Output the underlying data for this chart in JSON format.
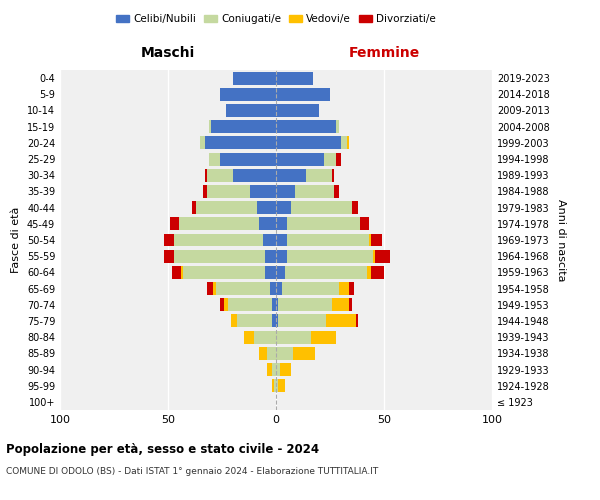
{
  "age_groups": [
    "100+",
    "95-99",
    "90-94",
    "85-89",
    "80-84",
    "75-79",
    "70-74",
    "65-69",
    "60-64",
    "55-59",
    "50-54",
    "45-49",
    "40-44",
    "35-39",
    "30-34",
    "25-29",
    "20-24",
    "15-19",
    "10-14",
    "5-9",
    "0-4"
  ],
  "birth_years": [
    "≤ 1923",
    "1924-1928",
    "1929-1933",
    "1934-1938",
    "1939-1943",
    "1944-1948",
    "1949-1953",
    "1954-1958",
    "1959-1963",
    "1964-1968",
    "1969-1973",
    "1974-1978",
    "1979-1983",
    "1984-1988",
    "1989-1993",
    "1994-1998",
    "1999-2003",
    "2004-2008",
    "2009-2013",
    "2014-2018",
    "2019-2023"
  ],
  "male": {
    "celibi": [
      0,
      0,
      0,
      0,
      0,
      2,
      2,
      3,
      5,
      5,
      6,
      8,
      9,
      12,
      20,
      26,
      33,
      30,
      23,
      26,
      20
    ],
    "coniugati": [
      0,
      1,
      2,
      4,
      10,
      16,
      20,
      25,
      38,
      42,
      41,
      37,
      28,
      20,
      12,
      5,
      2,
      1,
      0,
      0,
      0
    ],
    "vedovi": [
      0,
      1,
      2,
      4,
      5,
      3,
      2,
      1,
      1,
      0,
      0,
      0,
      0,
      0,
      0,
      0,
      0,
      0,
      0,
      0,
      0
    ],
    "divorziati": [
      0,
      0,
      0,
      0,
      0,
      0,
      2,
      3,
      4,
      5,
      5,
      4,
      2,
      2,
      1,
      0,
      0,
      0,
      0,
      0,
      0
    ]
  },
  "female": {
    "nubili": [
      0,
      0,
      0,
      0,
      0,
      1,
      1,
      3,
      4,
      5,
      5,
      5,
      7,
      9,
      14,
      22,
      30,
      28,
      20,
      25,
      17
    ],
    "coniugate": [
      0,
      1,
      2,
      8,
      16,
      22,
      25,
      26,
      38,
      40,
      38,
      34,
      28,
      18,
      12,
      6,
      3,
      1,
      0,
      0,
      0
    ],
    "vedove": [
      0,
      3,
      5,
      10,
      12,
      14,
      8,
      5,
      2,
      1,
      1,
      0,
      0,
      0,
      0,
      0,
      1,
      0,
      0,
      0,
      0
    ],
    "divorziate": [
      0,
      0,
      0,
      0,
      0,
      1,
      1,
      2,
      6,
      7,
      5,
      4,
      3,
      2,
      1,
      2,
      0,
      0,
      0,
      0,
      0
    ]
  },
  "colors": {
    "celibi": "#4472c4",
    "coniugati": "#c5d9a0",
    "vedovi": "#ffc000",
    "divorziati": "#cc0000"
  },
  "xlim": [
    -100,
    100
  ],
  "xticks": [
    -100,
    -50,
    0,
    50,
    100
  ],
  "xticklabels": [
    "100",
    "50",
    "0",
    "50",
    "100"
  ],
  "title1": "Popolazione per età, sesso e stato civile - 2024",
  "title2": "COMUNE DI ODOLO (BS) - Dati ISTAT 1° gennaio 2024 - Elaborazione TUTTITALIA.IT",
  "label_maschi": "Maschi",
  "label_femmine": "Femmine",
  "legend_labels": [
    "Celibi/Nubili",
    "Coniugati/e",
    "Vedovi/e",
    "Divorziati/e"
  ],
  "anni_di_nascita": "Anni di nascita",
  "fasce_di_eta": "Fasce di età",
  "bg_axes": "#f0f0f0",
  "bg_fig": "#ffffff"
}
